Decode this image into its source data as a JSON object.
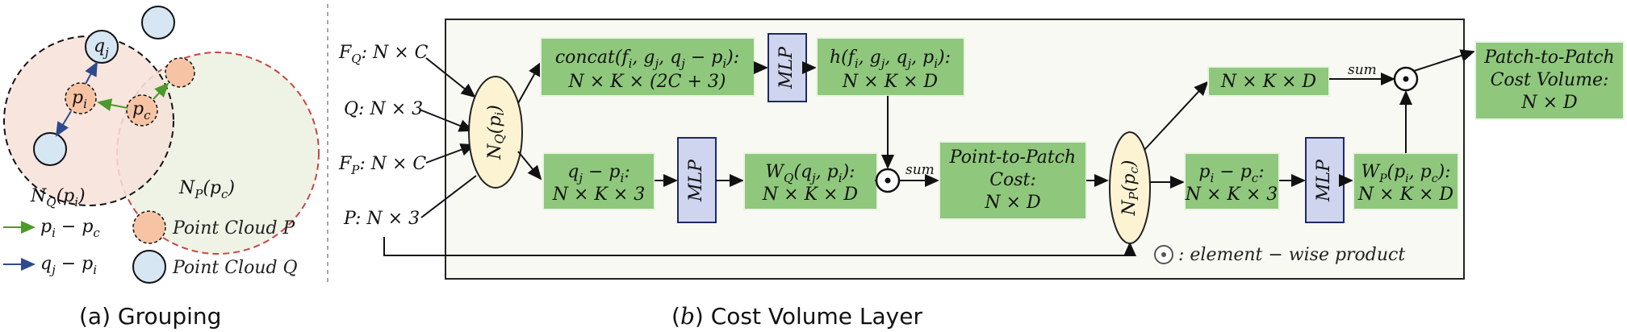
{
  "grouping": {
    "caption": "(a) Grouping",
    "q_j": "q",
    "q_j_sub": "j",
    "p_i": "p",
    "p_i_sub": "i",
    "p_c": "p",
    "p_c_sub": "c",
    "nq_label": "N",
    "nq_sub": "Q",
    "nq_arg": "(p",
    "nq_arg_sub": "i",
    "nq_close": ")",
    "np_label": "N",
    "np_sub": "P",
    "np_arg": "(p",
    "np_arg_sub": "c",
    "np_close": ")",
    "legend_green": "p",
    "legend_green_sub_i": "i",
    "legend_green_mid": " − p",
    "legend_green_sub_c": "c",
    "legend_blue": "q",
    "legend_blue_sub_j": "j",
    "legend_blue_mid": " − p",
    "legend_blue_sub_i": "i",
    "legend_cloud_p": "Point Cloud P",
    "legend_cloud_q": "Point Cloud Q",
    "colors": {
      "green_arrow": "#4c9a2a",
      "blue_arrow": "#2f4a8c",
      "cloud_p": "#f6c4a4",
      "cloud_q": "#d7e6f3"
    }
  },
  "cost_volume": {
    "caption_prefix": "(",
    "caption_b": "b",
    "caption_suffix": ") Cost Volume Layer",
    "inputs": {
      "fq": "F",
      "fq_sub": "Q",
      "fq_rest": ": N × C",
      "q": "Q",
      "q_rest": ": N × 3",
      "fp": "F",
      "fp_sub": "P",
      "fp_rest": ": N × C",
      "p": "P",
      "p_rest": ": N × 3"
    },
    "nq_node": {
      "label": "N",
      "sub": "Q",
      "arg": "(p",
      "arg_sub": "i",
      "close": ")"
    },
    "np_node": {
      "label": "N",
      "sub": "P",
      "arg": "(p",
      "arg_sub": "c",
      "close": ")"
    },
    "concat_box": {
      "line1": "concat(f",
      "line1_tail": ", g",
      "line1_tail2": ", q",
      "line1_tail3": " − p",
      "line1_tail4": "):",
      "s1": "i",
      "s2": "j",
      "s3": "j",
      "s4": "i",
      "line2": "N × K × (2C + 3)"
    },
    "mlp": "MLP",
    "h_box": {
      "line1": "h(f",
      "line1_a": ", g",
      "line1_b": ", q",
      "line1_c": ", p",
      "line1_d": "):",
      "s1": "i",
      "s2": "j",
      "s3": "j",
      "s4": "i",
      "line2": "N × K × D"
    },
    "qp_box": {
      "line1": "q",
      "s1": "j",
      "mid": " − p",
      "s2": "i",
      "tail": ":",
      "line2": "N × K × 3"
    },
    "wq_box": {
      "line1": "W",
      "s0": "Q",
      "a": "(q",
      "s1": "j",
      "b": ", p",
      "s2": "i",
      "c": "):",
      "line2": "N × K × D"
    },
    "sum": "sum",
    "pp_box": {
      "line1": "Point-to-Patch",
      "line2": "Cost:",
      "line3": "N × D"
    },
    "nkd_box": {
      "line1": "N × K × D"
    },
    "pc_box": {
      "line1": "p",
      "s1": "i",
      "mid": " − p",
      "s2": "c",
      "tail": ":",
      "line2": "N × K × 3"
    },
    "wp_box": {
      "line1": "W",
      "s0": "P",
      "a": "(p",
      "s1": "i",
      "b": ", p",
      "s2": "c",
      "c": "):",
      "line2": "N × K × D"
    },
    "out_box": {
      "line1": "Patch-to-Patch",
      "line2": "Cost Volume:",
      "line3": "N × D"
    },
    "legend_symbol": "⊙",
    "legend_text": ": element − wise product",
    "colors": {
      "green_box": "#8fc87c",
      "mlp_fill": "#cfd5ef",
      "node_fill": "#fbf3d2"
    }
  }
}
